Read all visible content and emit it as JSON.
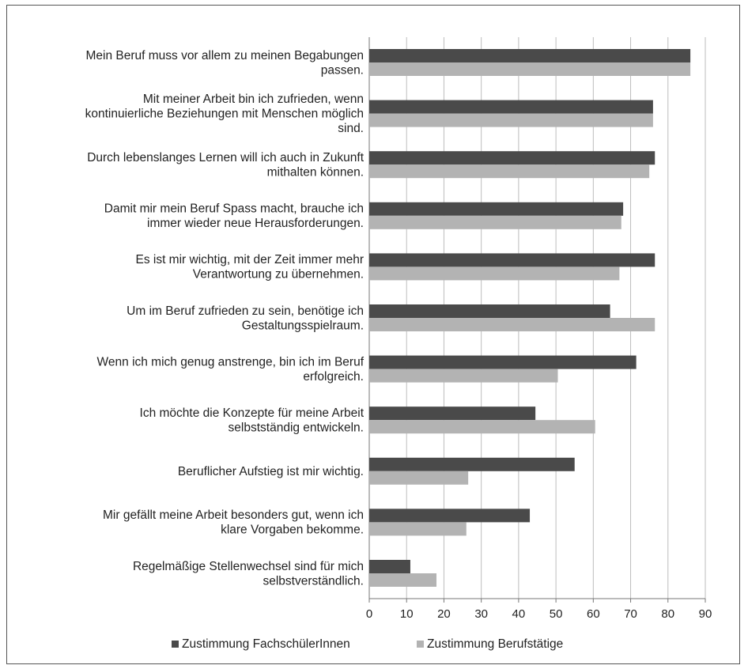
{
  "chart_data": {
    "type": "bar",
    "orientation": "horizontal",
    "categories": [
      [
        "Mein Beruf muss vor allem zu meinen Begabungen",
        "passen."
      ],
      [
        "Mit meiner Arbeit bin ich zufrieden, wenn",
        "kontinuierliche Beziehungen mit Menschen möglich",
        "sind."
      ],
      [
        "Durch lebenslanges Lernen will ich auch in Zukunft",
        "mithalten können."
      ],
      [
        "Damit mir mein Beruf Spass macht, brauche ich",
        "immer wieder neue Herausforderungen."
      ],
      [
        "Es ist mir wichtig, mit der Zeit immer mehr",
        "Verantwortung zu übernehmen."
      ],
      [
        "Um im Beruf zufrieden zu sein, benötige ich",
        "Gestaltungsspielraum."
      ],
      [
        "Wenn ich mich genug anstrenge, bin ich im Beruf",
        "erfolgreich."
      ],
      [
        "Ich möchte die Konzepte für meine Arbeit",
        "selbstständig entwickeln."
      ],
      [
        "Beruflicher Aufstieg ist mir wichtig."
      ],
      [
        "Mir gefällt meine Arbeit besonders gut, wenn ich",
        "klare Vorgaben bekomme."
      ],
      [
        "Regelmäßige Stellenwechsel sind für mich",
        "selbstverständlich."
      ]
    ],
    "series": [
      {
        "name": "Zustimmung FachschülerInnen",
        "color": "#4a4a4a",
        "values": [
          86,
          76,
          76.5,
          68,
          76.5,
          64.5,
          71.5,
          44.5,
          55,
          43,
          11
        ]
      },
      {
        "name": "Zustimmung Berufstätige",
        "color": "#b3b3b3",
        "values": [
          86,
          76,
          75,
          67.5,
          67,
          76.5,
          50.5,
          60.5,
          26.5,
          26,
          18
        ]
      }
    ],
    "xlim": [
      0,
      90
    ],
    "xticks": [
      0,
      10,
      20,
      30,
      40,
      50,
      60,
      70,
      80,
      90
    ],
    "grid": true,
    "legend_position": "bottom"
  }
}
